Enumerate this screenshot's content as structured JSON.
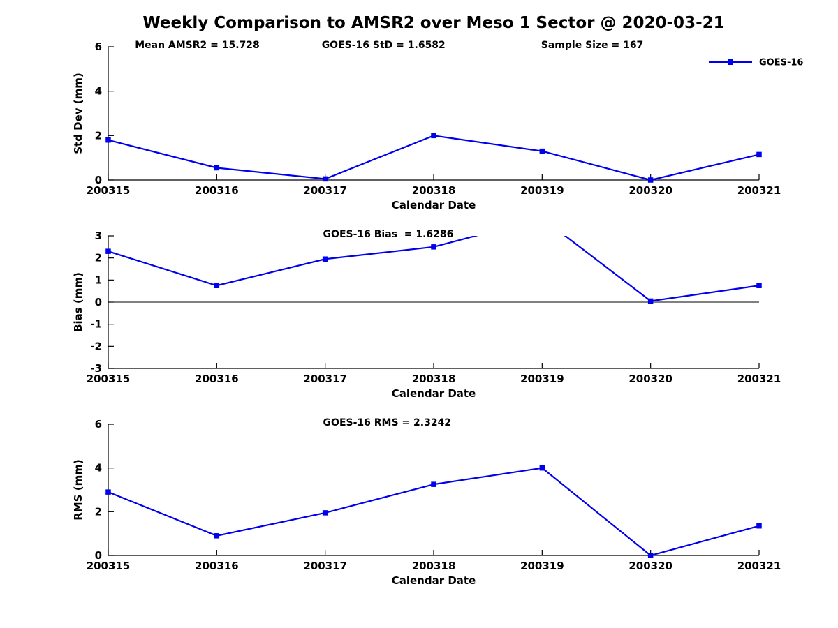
{
  "title": "Weekly Comparison to AMSR2 over Meso 1 Sector @ 2020-03-21",
  "colors": {
    "line": "#0000EE",
    "axis": "#000000",
    "text": "#000000",
    "background": "#FFFFFF"
  },
  "stats": {
    "mean_amsr2": 15.728,
    "goes16_std": 1.6582,
    "sample_size": 167,
    "goes16_bias": 1.6286,
    "goes16_rms": 2.3242
  },
  "chart_data": [
    {
      "type": "line",
      "ylabel": "Std Dev (mm)",
      "xlabel": "Calendar Date",
      "ylim": [
        0,
        6
      ],
      "yticks": [
        0,
        2,
        4,
        6
      ],
      "grid": false,
      "categories": [
        "200315",
        "200316",
        "200317",
        "200318",
        "200319",
        "200320",
        "200321"
      ],
      "series": [
        {
          "name": "GOES-16",
          "color": "#0000EE",
          "marker": "square",
          "values": [
            1.8,
            0.55,
            0.05,
            2.0,
            1.3,
            0.0,
            1.15
          ]
        }
      ],
      "annotations": [
        {
          "text": "Mean AMSR2 = 15.728",
          "x": 0.041
        },
        {
          "text": "GOES-16 StD = 1.6582",
          "x": 0.328
        },
        {
          "text": "Sample Size = 167",
          "x": 0.665
        }
      ],
      "legend": {
        "label": "GOES-16",
        "position": "top-right"
      },
      "zero_line": false
    },
    {
      "type": "line",
      "ylabel": "Bias (mm)",
      "xlabel": "Calendar Date",
      "ylim": [
        -3,
        3
      ],
      "yticks": [
        3,
        2,
        1,
        0,
        -1,
        -2,
        -3
      ],
      "grid": false,
      "categories": [
        "200315",
        "200316",
        "200317",
        "200318",
        "200319",
        "200320",
        "200321"
      ],
      "series": [
        {
          "name": "GOES-16",
          "color": "#0000EE",
          "marker": "square",
          "values": [
            2.3,
            0.75,
            1.95,
            2.5,
            3.8,
            0.05,
            0.75
          ]
        }
      ],
      "clipped_at_ylim": true,
      "annotations": [
        {
          "text": "GOES-16 Bias  = 1.6286",
          "x": 0.33
        }
      ],
      "zero_line": true
    },
    {
      "type": "line",
      "ylabel": "RMS (mm)",
      "xlabel": "Calendar Date",
      "ylim": [
        0,
        6
      ],
      "yticks": [
        0,
        2,
        4,
        6
      ],
      "grid": false,
      "categories": [
        "200315",
        "200316",
        "200317",
        "200318",
        "200319",
        "200320",
        "200321"
      ],
      "series": [
        {
          "name": "GOES-16",
          "color": "#0000EE",
          "marker": "square",
          "values": [
            2.9,
            0.9,
            1.95,
            3.25,
            4.0,
            0.0,
            1.35
          ]
        }
      ],
      "annotations": [
        {
          "text": "GOES-16 RMS = 2.3242",
          "x": 0.33
        }
      ],
      "zero_line": false
    }
  ]
}
